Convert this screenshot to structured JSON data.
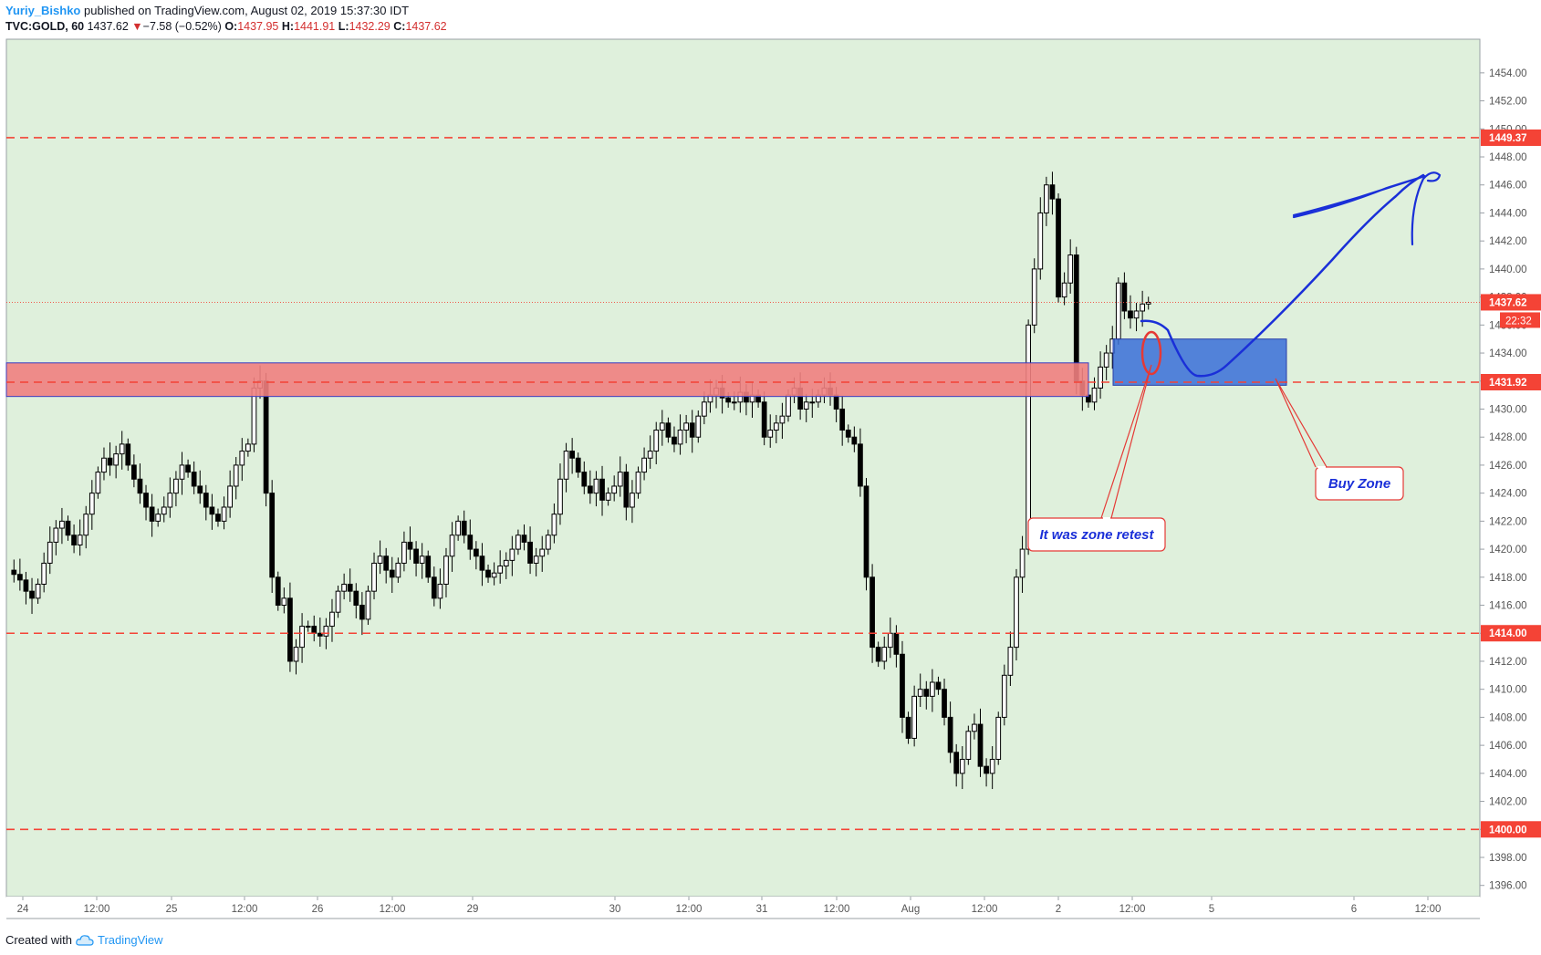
{
  "header": {
    "author": "Yuriy_Bishko",
    "published_text": "published on TradingView.com, August 02, 2019 15:37:30 IDT",
    "symbol": "TVC:GOLD, 60",
    "last": "1437.62",
    "change_arrow": "▼",
    "change": "−7.58 (−0.52%)",
    "o_label": "O:",
    "o_value": "1437.95",
    "h_label": "H:",
    "h_value": "1441.91",
    "l_label": "L:",
    "l_value": "1432.29",
    "c_label": "C:",
    "c_value": "1437.62"
  },
  "footer": {
    "created_with": "Created with",
    "brand": "TradingView",
    "brand_icon": "tradingview-cloud-icon"
  },
  "colors": {
    "background": "#dff0dc",
    "up_candle": "#ffffff",
    "down_candle": "#000000",
    "level_line": "#f44336",
    "red_zone": "#f08080",
    "blue_zone": "#3a6fd8",
    "annotation": "#1a2fd8"
  },
  "chart_data": {
    "type": "candlestick",
    "symbol": "TVC:GOLD",
    "interval": "60",
    "x_tick_labels": [
      "24",
      "12:00",
      "25",
      "12:00",
      "26",
      "12:00",
      "29",
      "30",
      "12:00",
      "31",
      "12:00",
      "Aug",
      "12:00",
      "2",
      "12:00",
      "5",
      "6",
      "12:00"
    ],
    "y_tick_labels": [
      "1454.00",
      "1452.00",
      "1450.00",
      "1448.00",
      "1446.00",
      "1444.00",
      "1442.00",
      "1440.00",
      "1438.00",
      "1436.00",
      "1434.00",
      "1432.00",
      "1430.00",
      "1428.00",
      "1426.00",
      "1424.00",
      "1422.00",
      "1420.00",
      "1418.00",
      "1416.00",
      "1414.00",
      "1412.00",
      "1410.00",
      "1408.00",
      "1406.00",
      "1404.00",
      "1402.00",
      "1400.00",
      "1398.00",
      "1396.00"
    ],
    "ylim": [
      1395.2,
      1456.4
    ],
    "horizontal_levels": [
      {
        "price": 1449.37,
        "label": "1449.37"
      },
      {
        "price": 1431.92,
        "label": "1431.92"
      },
      {
        "price": 1414.0,
        "label": "1414.00"
      },
      {
        "price": 1400.0,
        "label": "1400.00"
      }
    ],
    "last_price": {
      "price": 1437.62,
      "label": "1437.62",
      "countdown": "22:32"
    },
    "zones": [
      {
        "name": "resistance-zone",
        "price_top": 1433.3,
        "price_bottom": 1430.9
      },
      {
        "name": "buy-zone",
        "price_top": 1435.0,
        "price_bottom": 1431.7
      }
    ],
    "annotations": [
      {
        "text": "Buy Zone"
      },
      {
        "text": "It was zone retest"
      }
    ],
    "price_path": [
      1418.5,
      1418.2,
      1417.8,
      1417.0,
      1416.5,
      1417.5,
      1419.0,
      1420.5,
      1421.5,
      1422.0,
      1421.0,
      1420.3,
      1421.0,
      1422.5,
      1424.0,
      1425.5,
      1426.5,
      1426.0,
      1426.8,
      1427.5,
      1426.0,
      1425.0,
      1424.0,
      1423.0,
      1422.0,
      1422.5,
      1423.0,
      1424.0,
      1425.0,
      1426.0,
      1425.5,
      1424.5,
      1424.0,
      1423.0,
      1422.5,
      1422.0,
      1423.0,
      1424.5,
      1426.0,
      1427.0,
      1427.5,
      1431.5,
      1432.0,
      1424.0,
      1418.0,
      1416.0,
      1416.5,
      1412.0,
      1413.0,
      1414.5,
      1414.5,
      1414.0,
      1413.8,
      1414.5,
      1415.5,
      1417.0,
      1417.5,
      1417.0,
      1416.0,
      1415.0,
      1417.0,
      1419.0,
      1419.5,
      1418.5,
      1418.0,
      1419.0,
      1420.5,
      1420.0,
      1419.0,
      1419.5,
      1418.0,
      1416.5,
      1417.5,
      1419.5,
      1421.0,
      1422.0,
      1421.0,
      1420.0,
      1419.5,
      1418.5,
      1418.0,
      1418.3,
      1418.8,
      1419.2,
      1420.0,
      1421.0,
      1420.5,
      1419.0,
      1419.5,
      1420.0,
      1421.0,
      1422.5,
      1425.0,
      1427.0,
      1426.5,
      1425.5,
      1424.5,
      1424.0,
      1425.0,
      1423.5,
      1424.0,
      1424.5,
      1425.5,
      1423.0,
      1424.0,
      1425.5,
      1426.5,
      1427.0,
      1428.5,
      1429.0,
      1428.0,
      1427.5,
      1428.5,
      1429.0,
      1428.0,
      1429.5,
      1430.5,
      1431.0,
      1431.5,
      1430.8,
      1430.5,
      1430.5,
      1431.2,
      1430.5,
      1431.0,
      1430.5,
      1428.0,
      1428.5,
      1429.0,
      1429.5,
      1431.0,
      1431.5,
      1430.0,
      1430.5,
      1430.5,
      1431.0,
      1431.5,
      1431.0,
      1430.0,
      1428.5,
      1428.0,
      1427.5,
      1424.5,
      1418.0,
      1413.0,
      1412.0,
      1413.0,
      1414.0,
      1412.5,
      1408.0,
      1406.5,
      1409.5,
      1410.0,
      1409.5,
      1410.5,
      1410.0,
      1408.0,
      1405.5,
      1404.0,
      1405.0,
      1407.0,
      1407.5,
      1404.5,
      1404.0,
      1405.0,
      1408.0,
      1411.0,
      1413.0,
      1418.0,
      1420.0,
      1436.0,
      1440.0,
      1444.0,
      1446.0,
      1445.0,
      1438.0,
      1439.0,
      1441.0,
      1432.0,
      1431.0,
      1430.5,
      1431.5,
      1433.0,
      1434.0,
      1435.0,
      1439.0,
      1437.0,
      1436.5,
      1437.0,
      1437.5,
      1437.62
    ]
  }
}
